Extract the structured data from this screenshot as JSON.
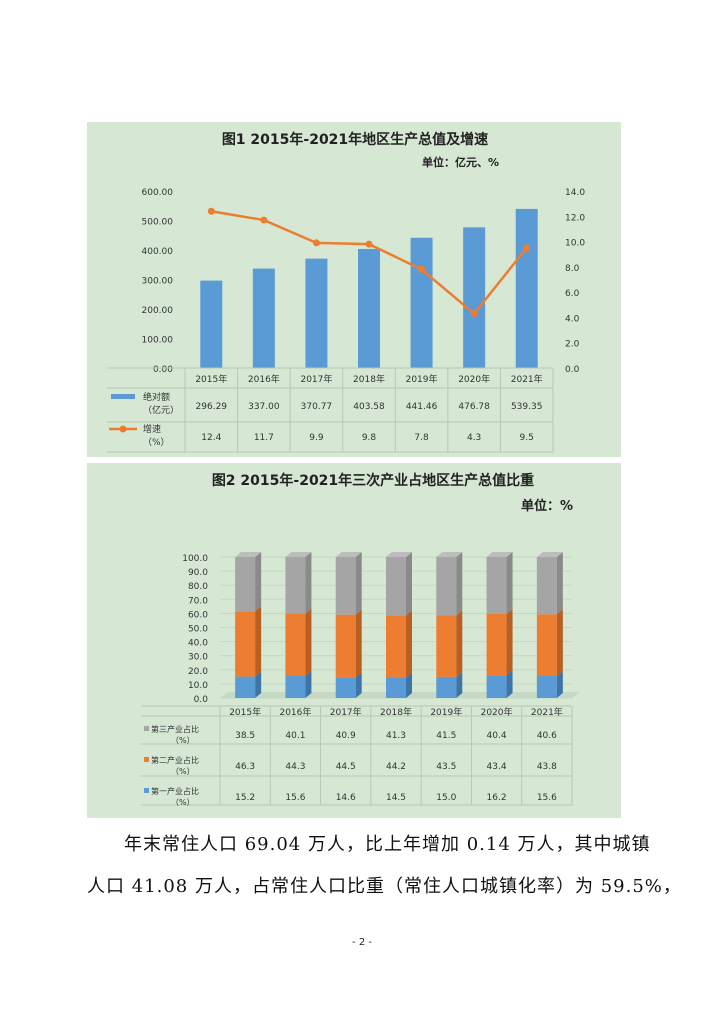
{
  "chart_data": [
    {
      "type": "bar+line",
      "title": "图1  2015年-2021年地区生产总值及增速",
      "unit": "单位：亿元、%",
      "categories": [
        "2015年",
        "2016年",
        "2017年",
        "2018年",
        "2019年",
        "2020年",
        "2021年"
      ],
      "left_ticks": [
        "600.00",
        "500.00",
        "400.00",
        "300.00",
        "200.00",
        "100.00",
        "0.00"
      ],
      "right_ticks": [
        "14.0",
        "12.0",
        "10.0",
        "8.0",
        "6.0",
        "4.0",
        "2.0",
        "0.0"
      ],
      "ylim_left": [
        0,
        600
      ],
      "ylim_right": [
        0,
        14
      ],
      "series": [
        {
          "name": "绝对额",
          "name2": "（亿元）",
          "type": "bar",
          "values": [
            296.29,
            337.0,
            370.77,
            403.58,
            441.46,
            476.78,
            539.35
          ],
          "labels": [
            "296.29",
            "337.00",
            "370.77",
            "403.58",
            "441.46",
            "476.78",
            "539.35"
          ]
        },
        {
          "name": "增速",
          "name2": "（%）",
          "type": "line",
          "values": [
            12.4,
            11.7,
            9.9,
            9.8,
            7.8,
            4.3,
            9.5
          ],
          "labels": [
            "12.4",
            "11.7",
            "9.9",
            "9.8",
            "7.8",
            "4.3",
            "9.5"
          ]
        }
      ]
    },
    {
      "type": "stacked-bar-3d",
      "title": "图2  2015年-2021年三次产业占地区生产总值比重",
      "unit": "单位：%",
      "categories": [
        "2015年",
        "2016年",
        "2017年",
        "2018年",
        "2019年",
        "2020年",
        "2021年"
      ],
      "ticks": [
        "100.0",
        "90.0",
        "80.0",
        "70.0",
        "60.0",
        "50.0",
        "40.0",
        "30.0",
        "20.0",
        "10.0",
        "0.0"
      ],
      "ylim": [
        0,
        100
      ],
      "series": [
        {
          "name": "第三产业占比",
          "name2": "（%）",
          "values": [
            38.5,
            40.1,
            40.9,
            41.3,
            41.5,
            40.4,
            40.6
          ],
          "labels": [
            "38.5",
            "40.1",
            "40.9",
            "41.3",
            "41.5",
            "40.4",
            "40.6"
          ]
        },
        {
          "name": "第二产业占比",
          "name2": "（%）",
          "values": [
            46.3,
            44.3,
            44.5,
            44.2,
            43.5,
            43.4,
            43.8
          ],
          "labels": [
            "46.3",
            "44.3",
            "44.5",
            "44.2",
            "43.5",
            "43.4",
            "43.8"
          ]
        },
        {
          "name": "第一产业占比",
          "name2": "（%）",
          "values": [
            15.2,
            15.6,
            14.6,
            14.5,
            15.0,
            16.2,
            15.6
          ],
          "labels": [
            "15.2",
            "15.6",
            "14.6",
            "14.5",
            "15.0",
            "16.2",
            "15.6"
          ]
        }
      ]
    }
  ],
  "colors": {
    "bar": "#5b9bd5",
    "line": "#ed7d31",
    "tertiary": "#a5a5a5",
    "secondary": "#ed7d31",
    "primary": "#5b9bd5"
  },
  "body": {
    "line1": "年末常住人口 69.04 万人，比上年增加 0.14 万人，其中城镇",
    "line2": "人口 41.08 万人，占常住人口比重（常住人口城镇化率）为 59.5%，"
  },
  "page_number": "- 2 -"
}
